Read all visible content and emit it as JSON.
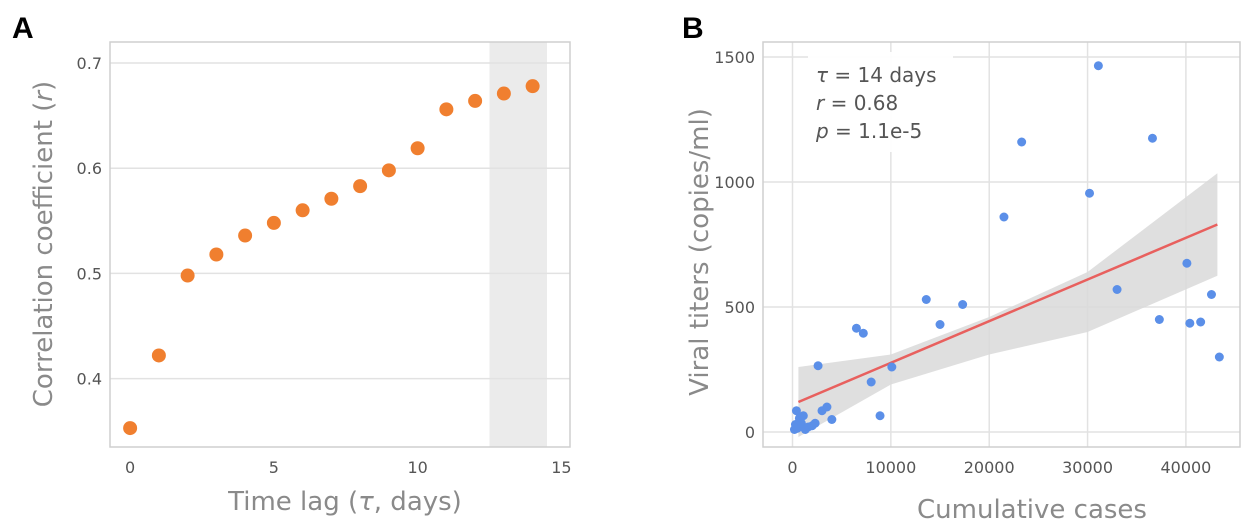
{
  "chart_data": [
    {
      "type": "scatter",
      "panel": "A",
      "x": [
        0,
        1,
        2,
        3,
        4,
        5,
        6,
        7,
        8,
        9,
        10,
        11,
        12,
        13,
        14
      ],
      "y": [
        0.353,
        0.422,
        0.498,
        0.518,
        0.536,
        0.548,
        0.56,
        0.571,
        0.583,
        0.598,
        0.619,
        0.656,
        0.664,
        0.671,
        0.678
      ],
      "xlabel": {
        "pre": "Time lag (",
        "sym": "τ",
        "post": ", days)"
      },
      "ylabel": {
        "pre": "Correlation coefficient (",
        "sym": "r",
        "post": ")"
      },
      "xlim": [
        -0.7,
        15.3
      ],
      "ylim": [
        0.335,
        0.72
      ],
      "xticks": [
        0,
        5,
        10,
        15
      ],
      "yticks": [
        0.4,
        0.5,
        0.6,
        0.7
      ],
      "highlight_x_range": [
        12.5,
        14.5
      ],
      "point_color": "#F07F2F",
      "highlight_color": "#EBEBEB",
      "grid": true
    },
    {
      "type": "scatter",
      "panel": "B",
      "xlabel": "Cumulative cases",
      "ylabel": "Viral titers (copies/ml)",
      "xlim": [
        -3000,
        45500
      ],
      "ylim": [
        -60,
        1560
      ],
      "xticks": [
        0,
        10000,
        20000,
        30000,
        40000
      ],
      "yticks": [
        0,
        500,
        1000,
        1500
      ],
      "points": [
        {
          "x": 200,
          "y": 10
        },
        {
          "x": 300,
          "y": 30
        },
        {
          "x": 400,
          "y": 85
        },
        {
          "x": 500,
          "y": 15
        },
        {
          "x": 700,
          "y": 55
        },
        {
          "x": 900,
          "y": 35
        },
        {
          "x": 1100,
          "y": 65
        },
        {
          "x": 1300,
          "y": 10
        },
        {
          "x": 1600,
          "y": 20
        },
        {
          "x": 2000,
          "y": 25
        },
        {
          "x": 2300,
          "y": 35
        },
        {
          "x": 2600,
          "y": 265
        },
        {
          "x": 3000,
          "y": 85
        },
        {
          "x": 3500,
          "y": 100
        },
        {
          "x": 4000,
          "y": 50
        },
        {
          "x": 6500,
          "y": 415
        },
        {
          "x": 7200,
          "y": 395
        },
        {
          "x": 8000,
          "y": 200
        },
        {
          "x": 8900,
          "y": 65
        },
        {
          "x": 10100,
          "y": 260
        },
        {
          "x": 13600,
          "y": 530
        },
        {
          "x": 15000,
          "y": 430
        },
        {
          "x": 17300,
          "y": 510
        },
        {
          "x": 21500,
          "y": 860
        },
        {
          "x": 23300,
          "y": 1160
        },
        {
          "x": 30200,
          "y": 955
        },
        {
          "x": 31100,
          "y": 1465
        },
        {
          "x": 33000,
          "y": 570
        },
        {
          "x": 36600,
          "y": 1175
        },
        {
          "x": 37300,
          "y": 450
        },
        {
          "x": 40100,
          "y": 675
        },
        {
          "x": 40400,
          "y": 435
        },
        {
          "x": 41500,
          "y": 440
        },
        {
          "x": 42600,
          "y": 550
        },
        {
          "x": 43400,
          "y": 300
        }
      ],
      "fit_line": {
        "x": [
          600,
          43200
        ],
        "y": [
          120,
          830
        ]
      },
      "confidence_band": {
        "x": [
          600,
          10000,
          20000,
          30000,
          43200
        ],
        "upper": [
          260,
          310,
          460,
          640,
          1035
        ],
        "lower": [
          -20,
          190,
          310,
          400,
          625
        ]
      },
      "annotations": [
        {
          "sym": "τ",
          "text": " = 14 days"
        },
        {
          "sym": "r",
          "text": " = 0.68"
        },
        {
          "sym": "p",
          "text": " = 1.1e-5"
        }
      ],
      "point_color": "#5B8FE8",
      "line_color": "#E8605E",
      "band_color": "#D9D9D9",
      "grid": true
    }
  ],
  "panels": {
    "a": "A",
    "b": "B"
  }
}
